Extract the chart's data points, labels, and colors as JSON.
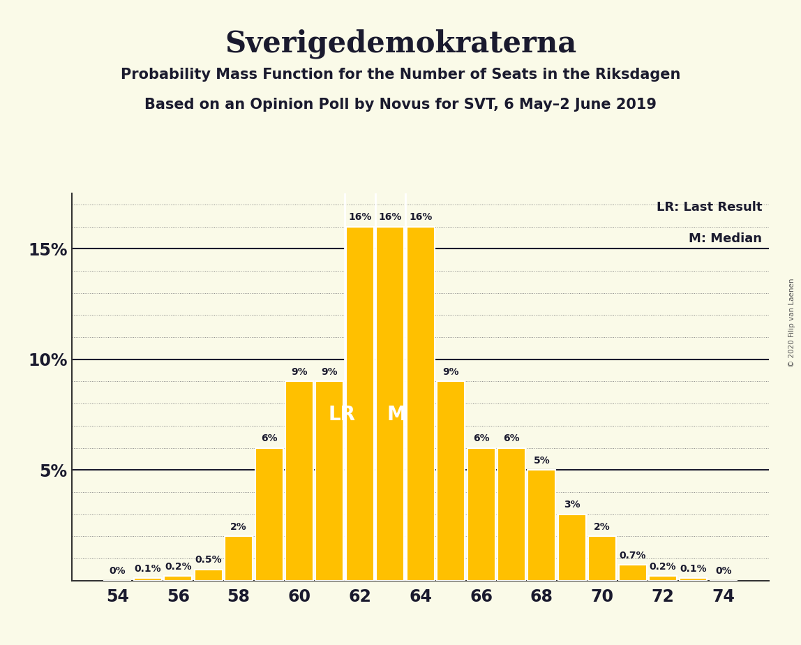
{
  "title": "Sverigedemokraterna",
  "subtitle1": "Probability Mass Function for the Number of Seats in the Riksdagen",
  "subtitle2": "Based on an Opinion Poll by Novus for SVT, 6 May–2 June 2019",
  "copyright": "© 2020 Filip van Laenen",
  "seats": [
    54,
    55,
    56,
    57,
    58,
    59,
    60,
    61,
    62,
    63,
    64,
    65,
    66,
    67,
    68,
    69,
    70,
    71,
    72,
    73,
    74
  ],
  "probabilities": [
    0.0,
    0.1,
    0.2,
    0.5,
    2.0,
    6.0,
    9.0,
    9.0,
    16.0,
    16.0,
    16.0,
    9.0,
    6.0,
    6.0,
    5.0,
    3.0,
    2.0,
    0.7,
    0.2,
    0.1,
    0.0
  ],
  "labels": [
    "0%",
    "0.1%",
    "0.2%",
    "0.5%",
    "2%",
    "6%",
    "9%",
    "9%",
    "16%",
    "16%",
    "16%",
    "9%",
    "6%",
    "6%",
    "5%",
    "3%",
    "2%",
    "0.7%",
    "0.2%",
    "0.1%",
    "0%"
  ],
  "bar_color": "#FFC000",
  "background_color": "#FAFAE8",
  "lr_seat": 62,
  "median_seat": 63,
  "lr_label": "LR",
  "median_label": "M",
  "lr_legend": "LR: Last Result",
  "median_legend": "M: Median",
  "ylim": [
    0,
    17.5
  ],
  "yticks": [
    0,
    5,
    10,
    15
  ],
  "xlim": [
    52.5,
    75.5
  ],
  "xticks": [
    54,
    56,
    58,
    60,
    62,
    64,
    66,
    68,
    70,
    72,
    74
  ],
  "solid_lines": [
    5,
    10,
    15
  ],
  "grid_step": 1.0,
  "title_fontsize": 30,
  "subtitle_fontsize": 15,
  "tick_fontsize": 17,
  "label_fontsize": 10,
  "legend_fontsize": 13,
  "lr_m_fontsize": 20
}
